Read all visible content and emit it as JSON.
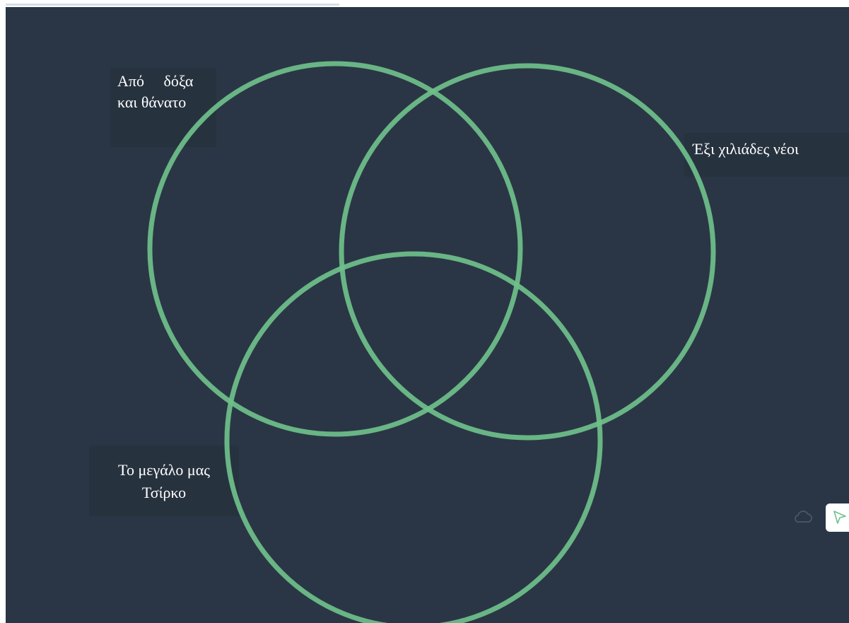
{
  "diagram": {
    "type": "venn",
    "circle_color": "#6fc08b",
    "background_color": "#2a3645",
    "labels": {
      "set_a": {
        "line1": "Από     δόξα",
        "line2": "και θάνατο"
      },
      "set_b": {
        "line1": "Έξι χιλιάδες νέοι"
      },
      "set_c": {
        "line1": "Το μεγάλο μας",
        "line2": "Τσίρκο"
      }
    }
  },
  "toolbar": {
    "sync_icon": "cloud-icon",
    "tool_icon": "cursor-arrow-icon"
  }
}
